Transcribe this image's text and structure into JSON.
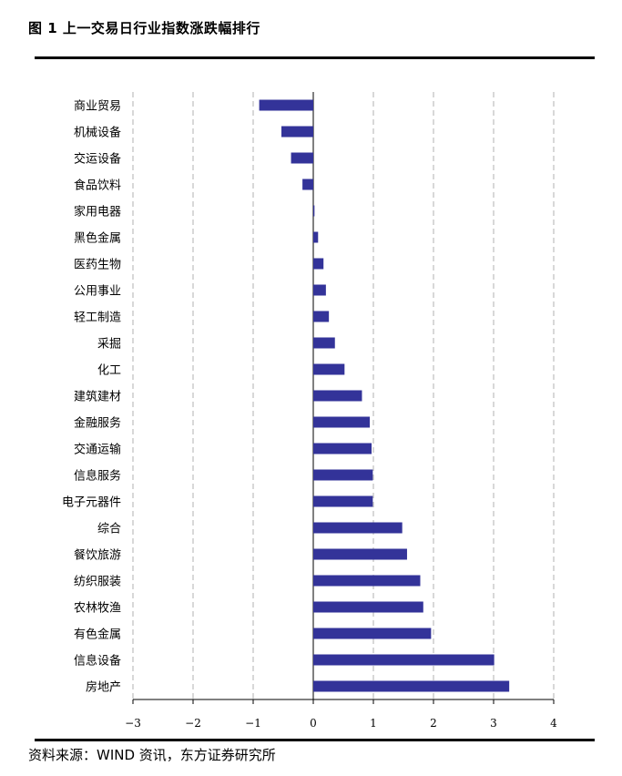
{
  "figure": {
    "title": "图 1  上一交易日行业指数涨跌幅排行",
    "source": "资料来源：WIND 资讯，东方证券研究所"
  },
  "chart_data": {
    "type": "bar",
    "orientation": "horizontal",
    "title": "",
    "xlabel": "",
    "ylabel": "",
    "xlim": [
      -3,
      4
    ],
    "xticks": [
      -3,
      -2,
      -1,
      0,
      1,
      2,
      3,
      4
    ],
    "xtick_labels": [
      "−3",
      "−2",
      "−1",
      "0",
      "1",
      "2",
      "3",
      "4"
    ],
    "grid": "vertical dashed",
    "bar_color": "#333399",
    "categories": [
      "商业贸易",
      "机械设备",
      "交运设备",
      "食品饮料",
      "家用电器",
      "黑色金属",
      "医药生物",
      "公用事业",
      "轻工制造",
      "采掘",
      "化工",
      "建筑建材",
      "金融服务",
      "交通运输",
      "信息服务",
      "电子元器件",
      "综合",
      "餐饮旅游",
      "纺织服装",
      "农林牧渔",
      "有色金属",
      "信息设备",
      "房地产"
    ],
    "values": [
      -0.9,
      -0.53,
      -0.37,
      -0.18,
      0.02,
      0.08,
      0.17,
      0.21,
      0.26,
      0.36,
      0.52,
      0.81,
      0.94,
      0.97,
      0.99,
      0.99,
      1.48,
      1.56,
      1.78,
      1.83,
      1.96,
      3.01,
      3.26
    ]
  }
}
